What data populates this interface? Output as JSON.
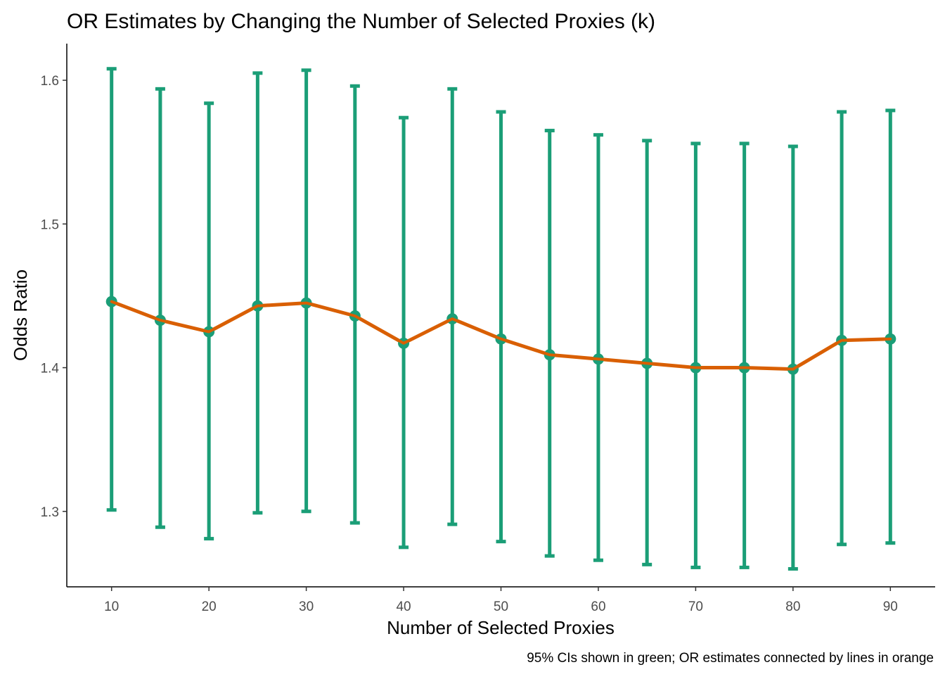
{
  "chart_data": {
    "type": "line",
    "title": "OR Estimates by Changing the Number of Selected Proxies (k)",
    "xlabel": "Number of Selected Proxies",
    "ylabel": "Odds Ratio",
    "caption": "95% CIs shown in green; OR estimates connected by lines in orange",
    "x_ticks": [
      10,
      20,
      30,
      40,
      50,
      60,
      70,
      80,
      90
    ],
    "y_ticks": [
      1.3,
      1.4,
      1.5,
      1.6
    ],
    "xlim": [
      5.4,
      94.6
    ],
    "ylim": [
      1.2475,
      1.6255
    ],
    "grid": false,
    "colors": {
      "ci": "#1b9e77",
      "estimate": "#d95f02"
    },
    "points": [
      {
        "k": 10,
        "or": 1.446,
        "lower": 1.301,
        "upper": 1.608
      },
      {
        "k": 15,
        "or": 1.433,
        "lower": 1.289,
        "upper": 1.594
      },
      {
        "k": 20,
        "or": 1.425,
        "lower": 1.281,
        "upper": 1.584
      },
      {
        "k": 25,
        "or": 1.443,
        "lower": 1.299,
        "upper": 1.605
      },
      {
        "k": 30,
        "or": 1.445,
        "lower": 1.3,
        "upper": 1.607
      },
      {
        "k": 35,
        "or": 1.436,
        "lower": 1.292,
        "upper": 1.596
      },
      {
        "k": 40,
        "or": 1.417,
        "lower": 1.275,
        "upper": 1.574
      },
      {
        "k": 45,
        "or": 1.434,
        "lower": 1.291,
        "upper": 1.594
      },
      {
        "k": 50,
        "or": 1.42,
        "lower": 1.279,
        "upper": 1.578
      },
      {
        "k": 55,
        "or": 1.409,
        "lower": 1.269,
        "upper": 1.565
      },
      {
        "k": 60,
        "or": 1.406,
        "lower": 1.266,
        "upper": 1.562
      },
      {
        "k": 65,
        "or": 1.403,
        "lower": 1.263,
        "upper": 1.558
      },
      {
        "k": 70,
        "or": 1.4,
        "lower": 1.261,
        "upper": 1.556
      },
      {
        "k": 75,
        "or": 1.4,
        "lower": 1.261,
        "upper": 1.556
      },
      {
        "k": 80,
        "or": 1.399,
        "lower": 1.26,
        "upper": 1.554
      },
      {
        "k": 85,
        "or": 1.419,
        "lower": 1.277,
        "upper": 1.578
      },
      {
        "k": 90,
        "or": 1.42,
        "lower": 1.278,
        "upper": 1.579
      }
    ]
  }
}
